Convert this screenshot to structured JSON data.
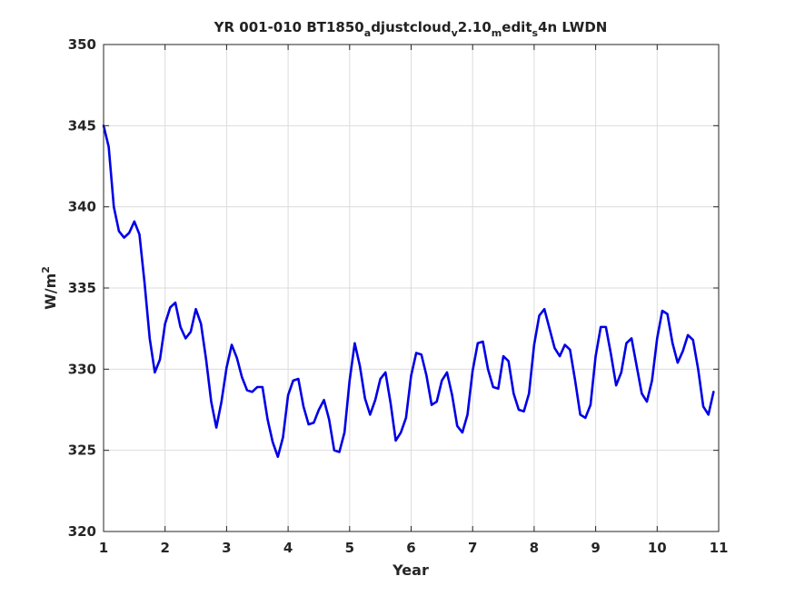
{
  "chart_data": {
    "type": "line",
    "title": {
      "parts": [
        {
          "text": "YR 001-010 BT1850",
          "sub": false
        },
        {
          "text": "a",
          "sub": true
        },
        {
          "text": "djustcloud",
          "sub": false
        },
        {
          "text": "v",
          "sub": true
        },
        {
          "text": "2.10",
          "sub": false
        },
        {
          "text": "m",
          "sub": true
        },
        {
          "text": "edit",
          "sub": false
        },
        {
          "text": "s",
          "sub": true
        },
        {
          "text": "4n LWDN",
          "sub": false
        }
      ]
    },
    "xlabel": "Year",
    "ylabel": {
      "base": "W/m",
      "sup": "2"
    },
    "xlim": [
      1,
      11
    ],
    "ylim": [
      320,
      350
    ],
    "xticks": [
      1,
      2,
      3,
      4,
      5,
      6,
      7,
      8,
      9,
      10,
      11
    ],
    "yticks": [
      320,
      325,
      330,
      335,
      340,
      345,
      350
    ],
    "grid": true,
    "line_color": "#0000e6",
    "series": [
      {
        "x_start": 1,
        "x_step": 0.08333,
        "values": [
          345.0,
          343.7,
          340.0,
          338.5,
          338.1,
          338.4,
          339.1,
          338.3,
          335.3,
          331.9,
          329.8,
          330.6,
          332.8,
          333.8,
          334.1,
          332.6,
          331.9,
          332.3,
          333.7,
          332.8,
          330.6,
          328.0,
          326.4,
          328.0,
          330.1,
          331.5,
          330.7,
          329.5,
          328.7,
          328.6,
          328.9,
          328.9,
          326.9,
          325.5,
          324.6,
          325.8,
          328.4,
          329.3,
          329.4,
          327.7,
          326.6,
          326.7,
          327.5,
          328.1,
          326.9,
          325.0,
          324.9,
          326.1,
          329.3,
          331.6,
          330.2,
          328.2,
          327.2,
          328.1,
          329.4,
          329.8,
          327.9,
          325.6,
          326.1,
          327.0,
          329.6,
          331.0,
          330.9,
          329.6,
          327.8,
          328.0,
          329.3,
          329.8,
          328.4,
          326.5,
          326.1,
          327.2,
          329.9,
          331.6,
          331.7,
          330.0,
          328.9,
          328.8,
          330.8,
          330.5,
          328.5,
          327.5,
          327.4,
          328.5,
          331.5,
          333.3,
          333.7,
          332.5,
          331.3,
          330.8,
          331.5,
          331.2,
          329.3,
          327.2,
          327.0,
          327.8,
          330.8,
          332.6,
          332.6,
          330.9,
          329.0,
          329.8,
          331.6,
          331.9,
          330.2,
          328.5,
          328.0,
          329.3,
          331.9,
          333.6,
          333.4,
          331.6,
          330.4,
          331.1,
          332.1,
          331.8,
          330.0,
          327.7,
          327.2,
          328.6
        ]
      }
    ]
  }
}
